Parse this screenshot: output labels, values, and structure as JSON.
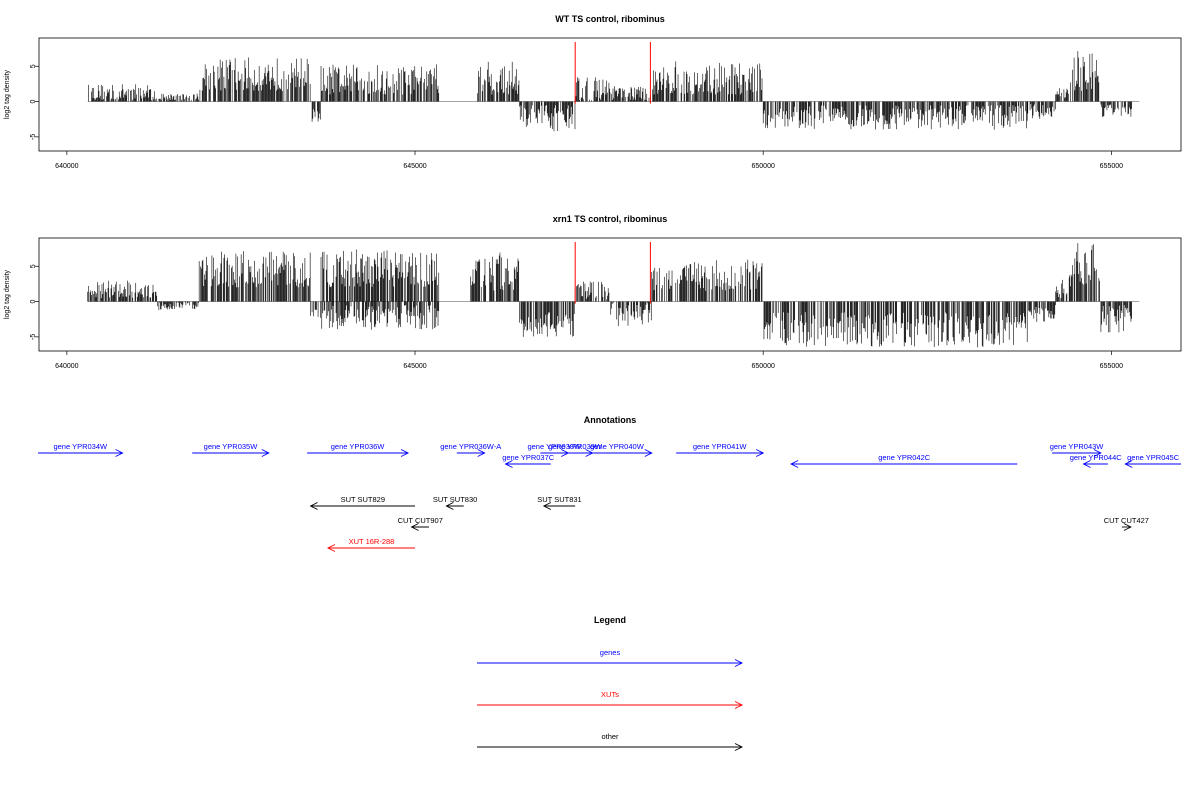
{
  "colors": {
    "genes": "#0000ff",
    "xuts": "#ff0000",
    "other": "#000000",
    "marker": "#ff0000",
    "zero_line": "#999999"
  },
  "chart_data": [
    {
      "type": "bar",
      "id": "wt",
      "title": "WT TS control, ribominus",
      "ylabel": "log2 tag density",
      "xlim": [
        639600,
        656000
      ],
      "ylim": [
        -7,
        9
      ],
      "x_ticks": [
        640000,
        645000,
        650000,
        655000
      ],
      "x_tick_labels": [
        "640000",
        "645000",
        "650000",
        "655000"
      ],
      "y_ticks": [
        -5,
        0,
        5
      ],
      "y_tick_labels": [
        "-5",
        "0",
        "5"
      ],
      "markers_x": [
        647300,
        648380
      ],
      "segments": [
        {
          "x0": 640300,
          "x1": 641300,
          "sign": 1,
          "lo": 0.2,
          "hi": 2.5
        },
        {
          "x0": 641300,
          "x1": 641900,
          "sign": 1,
          "lo": 0.1,
          "hi": 1.2
        },
        {
          "x0": 641900,
          "x1": 643500,
          "sign": 1,
          "lo": 1.5,
          "hi": 6.3
        },
        {
          "x0": 643500,
          "x1": 643650,
          "sign": -1,
          "lo": 1.0,
          "hi": 3.0
        },
        {
          "x0": 643650,
          "x1": 645350,
          "sign": 1,
          "lo": 1.0,
          "hi": 5.3
        },
        {
          "x0": 645900,
          "x1": 646500,
          "sign": 1,
          "lo": 1.0,
          "hi": 5.7
        },
        {
          "x0": 646500,
          "x1": 647300,
          "sign": -1,
          "lo": 0.5,
          "hi": 4.2
        },
        {
          "x0": 647300,
          "x1": 647800,
          "sign": 1,
          "lo": 0.2,
          "hi": 3.5
        },
        {
          "x0": 647800,
          "x1": 648400,
          "sign": 1,
          "lo": 0.2,
          "hi": 2.2
        },
        {
          "x0": 648400,
          "x1": 650000,
          "sign": 1,
          "lo": 1.0,
          "hi": 5.7
        },
        {
          "x0": 650000,
          "x1": 653800,
          "sign": -1,
          "lo": 0.5,
          "hi": 4.0
        },
        {
          "x0": 653800,
          "x1": 654200,
          "sign": -1,
          "lo": 0.3,
          "hi": 2.5
        },
        {
          "x0": 654200,
          "x1": 654400,
          "sign": 1,
          "lo": 0.5,
          "hi": 2.0
        },
        {
          "x0": 654400,
          "x1": 654850,
          "sign": 1,
          "lo": 1.5,
          "hi": 7.2
        },
        {
          "x0": 654850,
          "x1": 655300,
          "sign": -1,
          "lo": 0.4,
          "hi": 2.3
        }
      ]
    },
    {
      "type": "bar",
      "id": "xrn1",
      "title": "xrn1 TS control, ribominus",
      "ylabel": "log2 tag density",
      "xlim": [
        639600,
        656000
      ],
      "ylim": [
        -7,
        9
      ],
      "x_ticks": [
        640000,
        645000,
        650000,
        655000
      ],
      "x_tick_labels": [
        "640000",
        "645000",
        "650000",
        "655000"
      ],
      "y_ticks": [
        -5,
        0,
        5
      ],
      "y_tick_labels": [
        "-5",
        "0",
        "5"
      ],
      "markers_x": [
        647300,
        648380
      ],
      "segments": [
        {
          "x0": 640300,
          "x1": 641300,
          "sign": 1,
          "lo": 0.5,
          "hi": 3.0
        },
        {
          "x0": 641300,
          "x1": 641900,
          "sign": -1,
          "lo": 0.1,
          "hi": 1.3
        },
        {
          "x0": 641900,
          "x1": 643500,
          "sign": 1,
          "lo": 2.0,
          "hi": 7.2
        },
        {
          "x0": 643500,
          "x1": 643650,
          "sign": -1,
          "lo": 1.0,
          "hi": 2.8
        },
        {
          "x0": 643650,
          "x1": 645350,
          "sign": 1,
          "lo": 2.0,
          "hi": 7.5
        },
        {
          "x0": 643650,
          "x1": 645350,
          "sign": -1,
          "lo": 0.5,
          "hi": 4.0
        },
        {
          "x0": 645800,
          "x1": 646500,
          "sign": 1,
          "lo": 1.5,
          "hi": 7.0
        },
        {
          "x0": 646500,
          "x1": 647300,
          "sign": -1,
          "lo": 1.5,
          "hi": 5.0
        },
        {
          "x0": 647300,
          "x1": 647800,
          "sign": 1,
          "lo": 0.3,
          "hi": 3.0
        },
        {
          "x0": 647800,
          "x1": 648400,
          "sign": -1,
          "lo": 0.2,
          "hi": 3.5
        },
        {
          "x0": 648400,
          "x1": 650000,
          "sign": 1,
          "lo": 1.5,
          "hi": 6.0
        },
        {
          "x0": 650000,
          "x1": 653800,
          "sign": -1,
          "lo": 1.5,
          "hi": 6.5
        },
        {
          "x0": 653800,
          "x1": 654200,
          "sign": -1,
          "lo": 0.5,
          "hi": 3.0
        },
        {
          "x0": 654200,
          "x1": 654400,
          "sign": 1,
          "lo": 0.5,
          "hi": 3.5
        },
        {
          "x0": 654400,
          "x1": 654850,
          "sign": 1,
          "lo": 2.0,
          "hi": 8.3
        },
        {
          "x0": 654850,
          "x1": 655300,
          "sign": -1,
          "lo": 0.5,
          "hi": 4.5
        }
      ]
    }
  ],
  "annotations": {
    "title": "Annotations",
    "xlim": [
      639600,
      656000
    ],
    "features": [
      {
        "label": "gene YPR034W",
        "start": 639550,
        "end": 640800,
        "strand": "+",
        "class": "genes",
        "lane": 0
      },
      {
        "label": "gene YPR035W",
        "start": 641800,
        "end": 642900,
        "strand": "+",
        "class": "genes",
        "lane": 0
      },
      {
        "label": "gene YPR036W",
        "start": 643450,
        "end": 644900,
        "strand": "+",
        "class": "genes",
        "lane": 0
      },
      {
        "label": "gene YPR036W-A",
        "start": 645600,
        "end": 646000,
        "strand": "+",
        "class": "genes",
        "lane": 0
      },
      {
        "label": "gene YPR037C",
        "start": 646300,
        "end": 646950,
        "strand": "-",
        "class": "genes",
        "lane": 1
      },
      {
        "label": "gene YPR038W",
        "start": 646800,
        "end": 647200,
        "strand": "+",
        "class": "genes",
        "lane": 0
      },
      {
        "label": "gene YPR039W",
        "start": 647050,
        "end": 647550,
        "strand": "+",
        "class": "genes",
        "lane": 0
      },
      {
        "label": "gene YPR040W",
        "start": 647400,
        "end": 648400,
        "strand": "+",
        "class": "genes",
        "lane": 0
      },
      {
        "label": "gene YPR041W",
        "start": 648750,
        "end": 650000,
        "strand": "+",
        "class": "genes",
        "lane": 0
      },
      {
        "label": "gene YPR042C",
        "start": 650400,
        "end": 653650,
        "strand": "-",
        "class": "genes",
        "lane": 1
      },
      {
        "label": "gene YPR043W",
        "start": 654150,
        "end": 654850,
        "strand": "+",
        "class": "genes",
        "lane": 0
      },
      {
        "label": "gene YPR044C",
        "start": 654600,
        "end": 654950,
        "strand": "-",
        "class": "genes",
        "lane": 1
      },
      {
        "label": "gene YPR045C",
        "start": 655200,
        "end": 656000,
        "strand": "-",
        "class": "genes",
        "lane": 1
      },
      {
        "label": "SUT SUT829",
        "start": 643500,
        "end": 645000,
        "strand": "-",
        "class": "other",
        "lane": 3
      },
      {
        "label": "SUT SUT830",
        "start": 645450,
        "end": 645700,
        "strand": "-",
        "class": "other",
        "lane": 3
      },
      {
        "label": "SUT SUT831",
        "start": 646850,
        "end": 647300,
        "strand": "-",
        "class": "other",
        "lane": 3
      },
      {
        "label": "CUT CUT907",
        "start": 644950,
        "end": 645200,
        "strand": "-",
        "class": "other",
        "lane": 4
      },
      {
        "label": "CUT CUT427",
        "start": 655150,
        "end": 655280,
        "strand": "+",
        "class": "other",
        "lane": 4
      },
      {
        "label": "XUT 16R-288",
        "start": 643750,
        "end": 645000,
        "strand": "-",
        "class": "xuts",
        "lane": 5
      }
    ]
  },
  "legend": {
    "title": "Legend",
    "entries": [
      {
        "label": "genes",
        "class": "genes"
      },
      {
        "label": "XUTs",
        "class": "xuts"
      },
      {
        "label": "other",
        "class": "other"
      }
    ]
  }
}
